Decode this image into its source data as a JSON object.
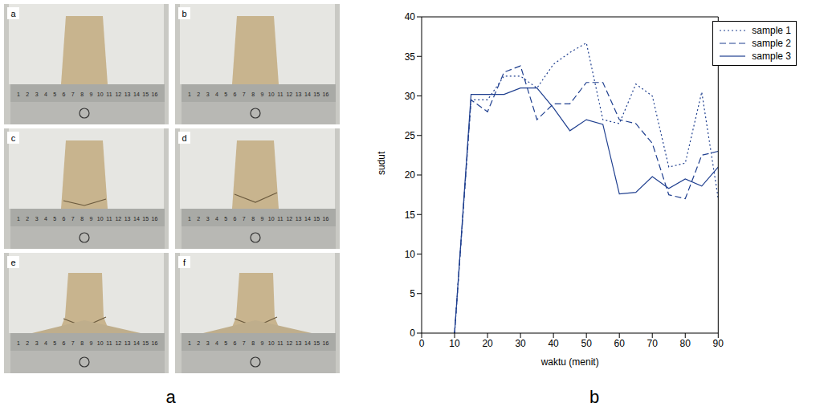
{
  "panel_labels": [
    "a",
    "b"
  ],
  "photo_panel": {
    "photo_labels": [
      "a",
      "b",
      "c",
      "d",
      "e",
      "f"
    ],
    "ruler_ticks": [
      1,
      2,
      3,
      4,
      5,
      6,
      7,
      8,
      9,
      10,
      11,
      12,
      13,
      14,
      15,
      16
    ]
  },
  "chart_data": {
    "type": "line",
    "x_label": "waktu (menit)",
    "y_label": "sudut",
    "x": [
      10,
      15,
      20,
      25,
      30,
      35,
      40,
      45,
      50,
      55,
      60,
      65,
      70,
      75,
      80,
      85,
      90
    ],
    "series": [
      {
        "name": "sample 1",
        "color": "#1f3f8f",
        "line_style": "dotted",
        "values": [
          0,
          29.5,
          29.5,
          32.5,
          32.5,
          31,
          34,
          35.5,
          36.7,
          27,
          26.5,
          31.5,
          30,
          21,
          21.5,
          30.5,
          17
        ]
      },
      {
        "name": "sample 2",
        "color": "#1f3f8f",
        "line_style": "dashed",
        "values": [
          0,
          29.5,
          28,
          33,
          33.8,
          27,
          29,
          29,
          31.7,
          31.7,
          27,
          26.5,
          24,
          17.5,
          17,
          22.5,
          23
        ]
      },
      {
        "name": "sample 3",
        "color": "#1f3f8f",
        "line_style": "solid",
        "values": [
          0,
          30.2,
          30.2,
          30.2,
          31,
          31,
          28.5,
          25.6,
          27,
          26.4,
          17.6,
          17.8,
          19.8,
          18.3,
          19.5,
          18.6,
          21
        ]
      }
    ],
    "xlim": [
      0,
      90
    ],
    "xticks": [
      0,
      10,
      20,
      30,
      40,
      50,
      60,
      70,
      80,
      90
    ],
    "ylim": [
      0,
      40
    ],
    "yticks": [
      0,
      5,
      10,
      15,
      20,
      25,
      30,
      35,
      40
    ],
    "grid": false,
    "legend": "upper right"
  }
}
